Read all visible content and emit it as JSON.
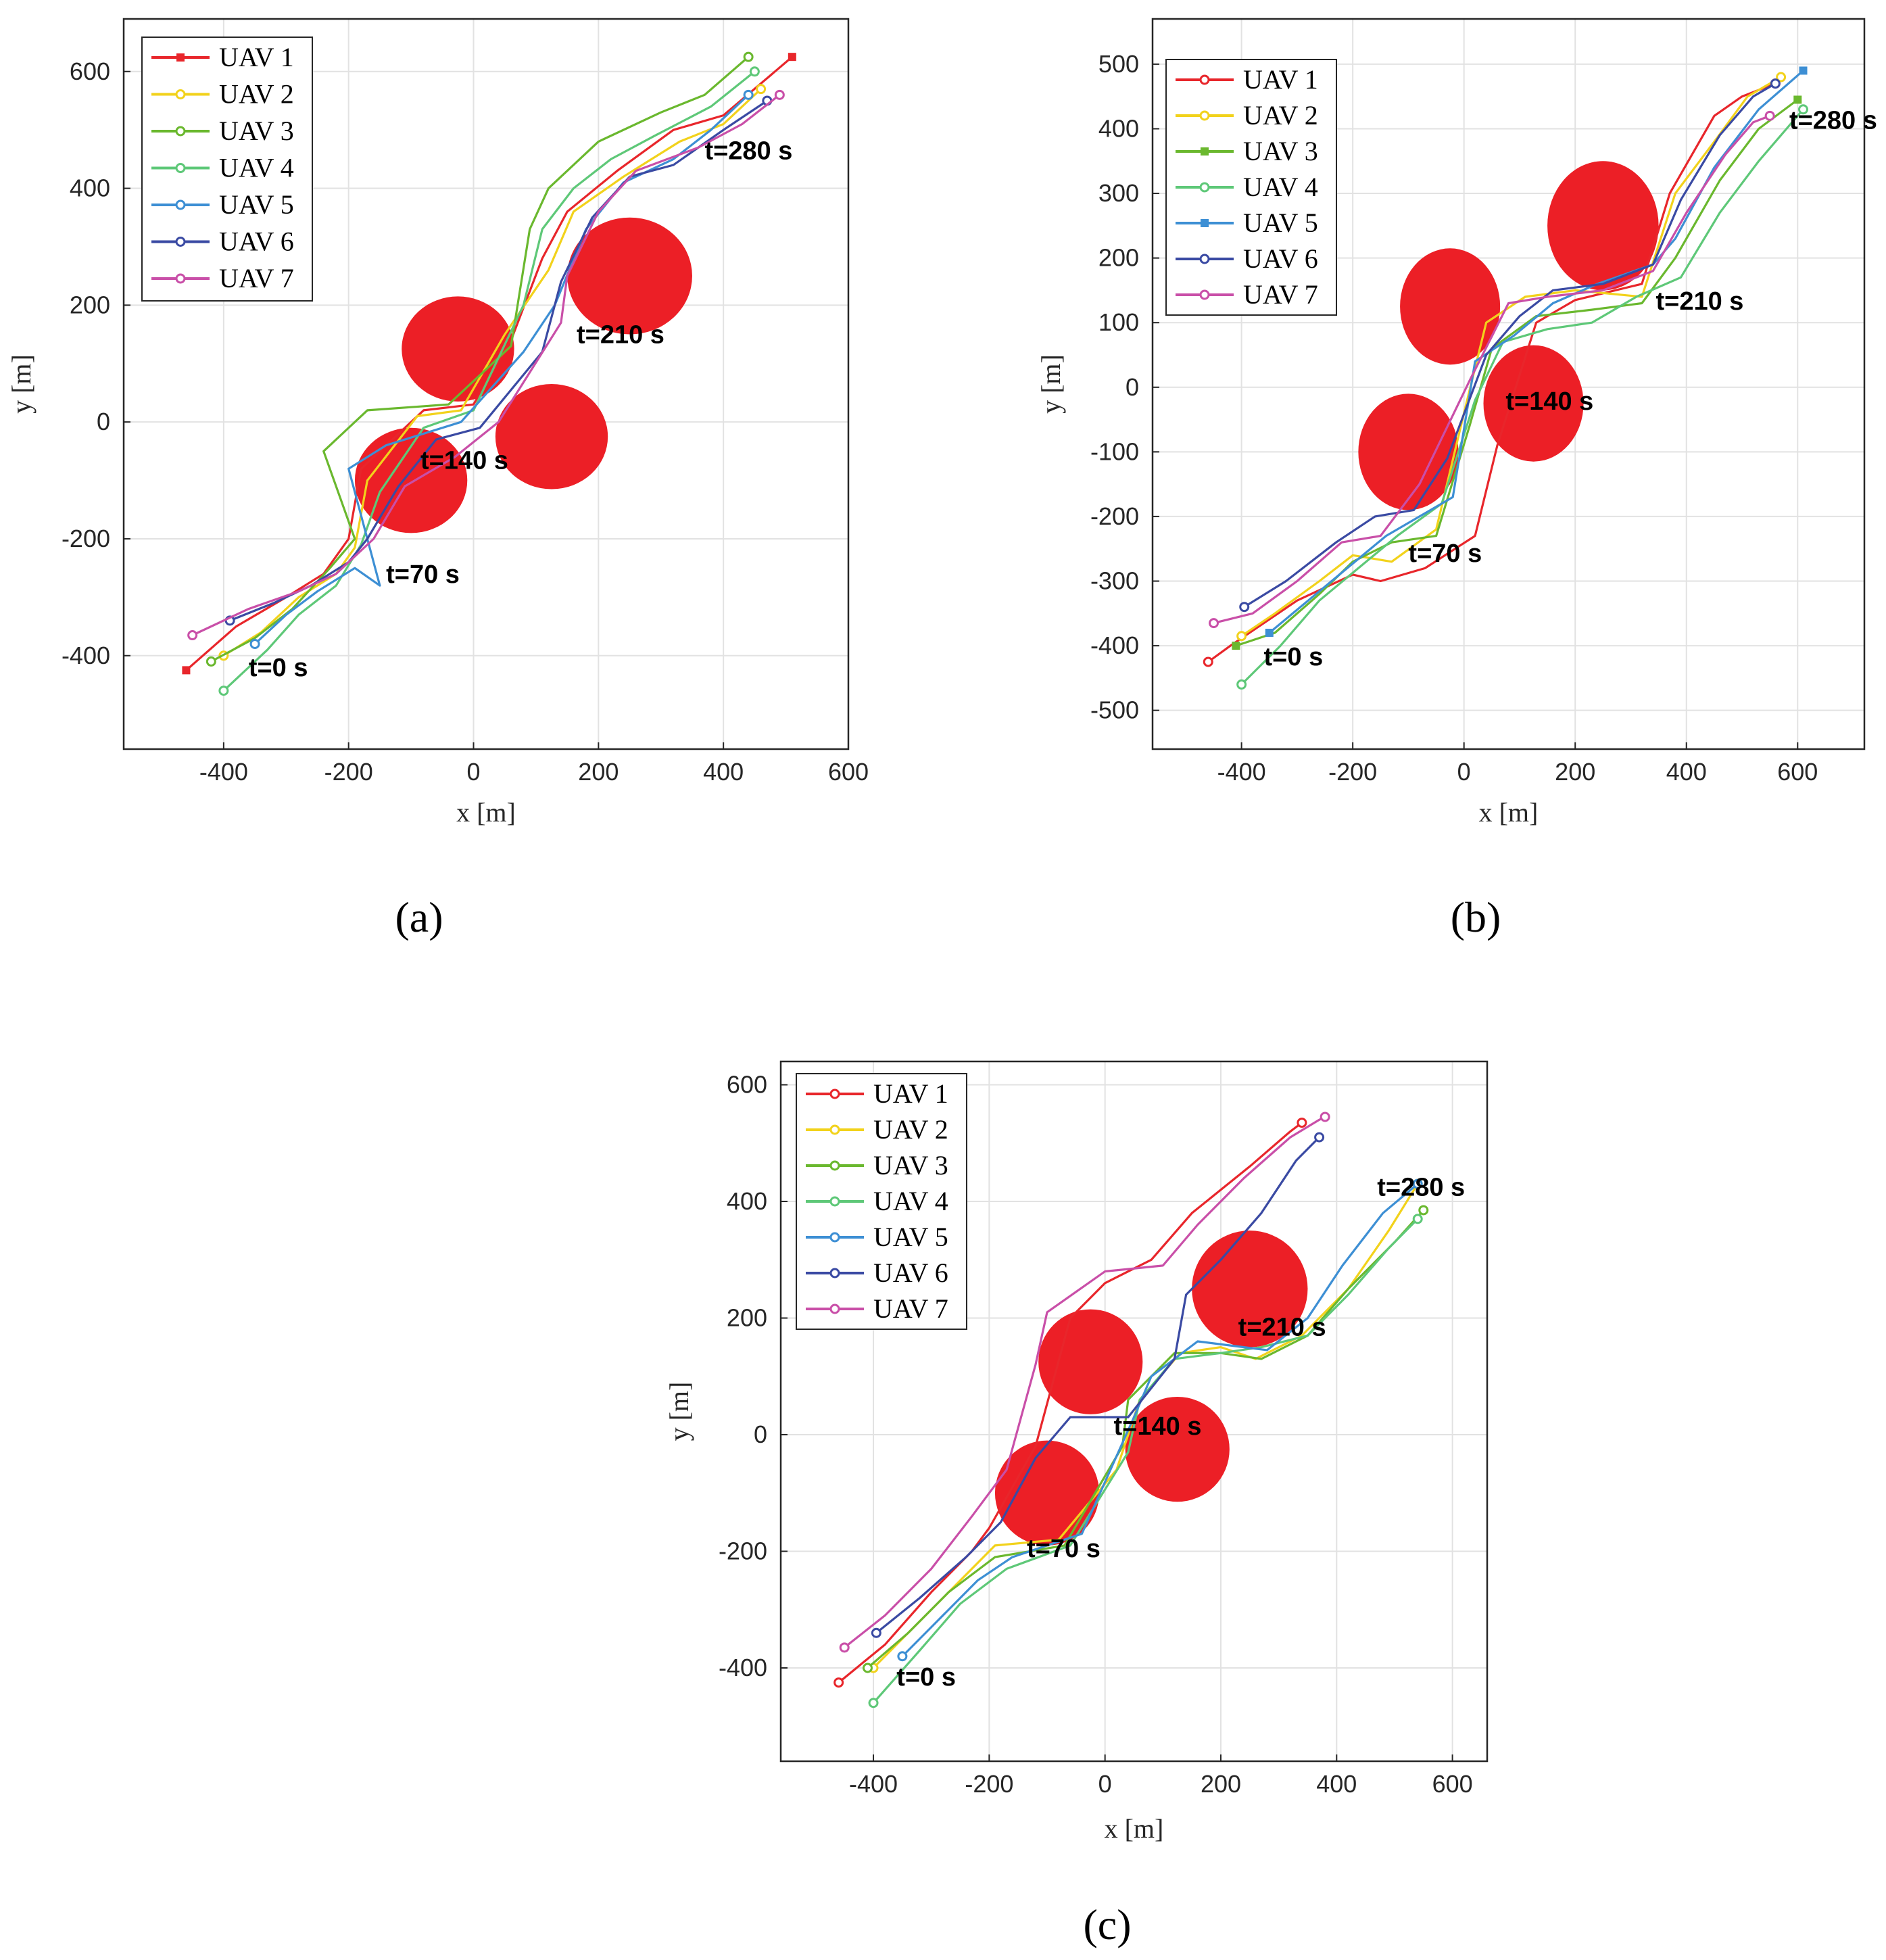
{
  "figure": {
    "series_names": [
      "UAV 1",
      "UAV 2",
      "UAV 3",
      "UAV 4",
      "UAV 5",
      "UAV 6",
      "UAV 7"
    ],
    "series_colors": [
      "#e8262b",
      "#f2d21b",
      "#6ab82e",
      "#5ec878",
      "#3d8fd4",
      "#3a4aa3",
      "#c94fa8"
    ]
  },
  "chart_data": [
    {
      "type": "line",
      "panel_label": "(a)",
      "xlabel": "x [m]",
      "ylabel": "y [m]",
      "xlim": [
        -560,
        600
      ],
      "ylim": [
        -560,
        690
      ],
      "xticks": [
        -400,
        -200,
        0,
        200,
        400,
        600
      ],
      "yticks": [
        -400,
        -200,
        0,
        200,
        400,
        600
      ],
      "xtick_labels": [
        "-400",
        "-200",
        "0",
        "200",
        "400",
        "600"
      ],
      "ytick_labels": [
        "-400",
        "-200",
        "0",
        "200",
        "400",
        "600"
      ],
      "grid": true,
      "legend_position": "top-left",
      "legend_markers": [
        "square",
        "circle",
        "circle",
        "circle",
        "circle",
        "circle",
        "circle"
      ],
      "obstacles": [
        {
          "cx": -100,
          "cy": -100,
          "r": 90
        },
        {
          "cx": -25,
          "cy": 125,
          "r": 90
        },
        {
          "cx": 125,
          "cy": -25,
          "r": 90
        },
        {
          "cx": 250,
          "cy": 250,
          "r": 100
        }
      ],
      "annotations": [
        {
          "text": "t=0 s",
          "x": -360,
          "y": -435
        },
        {
          "text": "t=70 s",
          "x": -140,
          "y": -275
        },
        {
          "text": "t=140 s",
          "x": -85,
          "y": -80
        },
        {
          "text": "t=210 s",
          "x": 165,
          "y": 135
        },
        {
          "text": "t=280 s",
          "x": 370,
          "y": 450
        }
      ],
      "series": [
        {
          "name": "UAV 1",
          "x": [
            -460,
            -380,
            -300,
            -240,
            -200,
            -180,
            -80,
            0,
            60,
            110,
            150,
            230,
            320,
            400,
            510
          ],
          "y": [
            -425,
            -350,
            -300,
            -260,
            -200,
            -80,
            20,
            30,
            140,
            280,
            360,
            430,
            500,
            525,
            625
          ]
        },
        {
          "name": "UAV 2",
          "x": [
            -400,
            -340,
            -280,
            -220,
            -190,
            -170,
            -90,
            -20,
            50,
            120,
            160,
            240,
            330,
            400,
            460
          ],
          "y": [
            -400,
            -360,
            -300,
            -260,
            -215,
            -100,
            10,
            20,
            150,
            260,
            360,
            420,
            480,
            510,
            570
          ]
        },
        {
          "name": "UAV 3",
          "x": [
            -420,
            -350,
            -290,
            -230,
            -190,
            -240,
            -170,
            -40,
            60,
            90,
            120,
            200,
            300,
            370,
            440
          ],
          "y": [
            -410,
            -370,
            -320,
            -250,
            -200,
            -50,
            20,
            30,
            130,
            330,
            400,
            480,
            530,
            560,
            625
          ]
        },
        {
          "name": "UAV 4",
          "x": [
            -400,
            -330,
            -280,
            -220,
            -180,
            -150,
            -80,
            0,
            80,
            110,
            160,
            220,
            290,
            380,
            450
          ],
          "y": [
            -460,
            -390,
            -330,
            -280,
            -210,
            -120,
            -10,
            20,
            200,
            330,
            400,
            450,
            490,
            540,
            600
          ]
        },
        {
          "name": "UAV 5",
          "x": [
            -350,
            -300,
            -250,
            -190,
            -150,
            -200,
            -140,
            -20,
            80,
            130,
            180,
            240,
            320,
            380,
            440
          ],
          "y": [
            -380,
            -330,
            -290,
            -250,
            -280,
            -80,
            -40,
            0,
            120,
            200,
            330,
            410,
            450,
            500,
            560
          ]
        },
        {
          "name": "UAV 6",
          "x": [
            -390,
            -320,
            -260,
            -200,
            -170,
            -120,
            -60,
            10,
            110,
            140,
            190,
            250,
            320,
            400,
            470
          ],
          "y": [
            -340,
            -310,
            -280,
            -240,
            -200,
            -110,
            -30,
            -10,
            120,
            240,
            350,
            420,
            440,
            500,
            550
          ]
        },
        {
          "name": "UAV 7",
          "x": [
            -450,
            -360,
            -280,
            -220,
            -160,
            -110,
            -30,
            40,
            140,
            150,
            200,
            260,
            360,
            430,
            490
          ],
          "y": [
            -365,
            -320,
            -290,
            -260,
            -200,
            -110,
            -60,
            0,
            170,
            250,
            360,
            430,
            470,
            510,
            560
          ]
        }
      ]
    },
    {
      "type": "line",
      "panel_label": "(b)",
      "xlabel": "x [m]",
      "ylabel": "y [m]",
      "xlim": [
        -560,
        720
      ],
      "ylim": [
        -560,
        570
      ],
      "xticks": [
        -400,
        -200,
        0,
        200,
        400,
        600
      ],
      "yticks": [
        -500,
        -400,
        -300,
        -200,
        -100,
        0,
        100,
        200,
        300,
        400,
        500
      ],
      "xtick_labels": [
        "-400",
        "-200",
        "0",
        "200",
        "400",
        "600"
      ],
      "ytick_labels": [
        "-500",
        "-400",
        "-300",
        "-200",
        "-100",
        "0",
        "100",
        "200",
        "300",
        "400",
        "500"
      ],
      "grid": true,
      "legend_position": "top-left",
      "legend_markers": [
        "circle",
        "circle",
        "square",
        "circle",
        "square",
        "circle",
        "circle"
      ],
      "obstacles": [
        {
          "cx": -100,
          "cy": -100,
          "r": 90
        },
        {
          "cx": -25,
          "cy": 125,
          "r": 90
        },
        {
          "cx": 125,
          "cy": -25,
          "r": 90
        },
        {
          "cx": 250,
          "cy": 250,
          "r": 100
        }
      ],
      "annotations": [
        {
          "text": "t=0 s",
          "x": -360,
          "y": -430
        },
        {
          "text": "t=70 s",
          "x": -100,
          "y": -270
        },
        {
          "text": "t=140 s",
          "x": 75,
          "y": -35
        },
        {
          "text": "t=210 s",
          "x": 345,
          "y": 120
        },
        {
          "text": "t=280 s",
          "x": 585,
          "y": 400
        }
      ],
      "series": [
        {
          "name": "UAV 1",
          "x": [
            -460,
            -420,
            -300,
            -200,
            -150,
            -70,
            20,
            60,
            130,
            200,
            320,
            370,
            450,
            500,
            560
          ],
          "y": [
            -425,
            -400,
            -330,
            -290,
            -300,
            -280,
            -230,
            -90,
            100,
            135,
            160,
            300,
            420,
            450,
            470
          ]
        },
        {
          "name": "UAV 2",
          "x": [
            -400,
            -340,
            -260,
            -200,
            -130,
            -50,
            0,
            40,
            110,
            200,
            320,
            380,
            450,
            510,
            570
          ],
          "y": [
            -385,
            -350,
            -300,
            -260,
            -270,
            -220,
            -40,
            100,
            140,
            150,
            140,
            300,
            380,
            450,
            480
          ]
        },
        {
          "name": "UAV 3",
          "x": [
            -410,
            -340,
            -260,
            -200,
            -130,
            -50,
            10,
            50,
            130,
            230,
            320,
            380,
            460,
            530,
            600
          ],
          "y": [
            -400,
            -380,
            -320,
            -270,
            -240,
            -230,
            -60,
            60,
            110,
            120,
            130,
            200,
            320,
            400,
            445
          ]
        },
        {
          "name": "UAV 4",
          "x": [
            -400,
            -330,
            -260,
            -190,
            -120,
            -40,
            20,
            70,
            150,
            230,
            310,
            390,
            460,
            530,
            610
          ],
          "y": [
            -460,
            -400,
            -330,
            -280,
            -230,
            -180,
            -20,
            70,
            90,
            100,
            140,
            170,
            270,
            350,
            430
          ]
        },
        {
          "name": "UAV 5",
          "x": [
            -350,
            -280,
            -210,
            -140,
            -80,
            -20,
            20,
            90,
            160,
            240,
            340,
            380,
            450,
            530,
            610
          ],
          "y": [
            -380,
            -330,
            -280,
            -230,
            -200,
            -170,
            40,
            80,
            130,
            160,
            190,
            230,
            340,
            430,
            490
          ]
        },
        {
          "name": "UAV 6",
          "x": [
            -395,
            -320,
            -230,
            -160,
            -90,
            -30,
            40,
            100,
            160,
            250,
            340,
            390,
            460,
            520,
            560
          ],
          "y": [
            -340,
            -300,
            -240,
            -200,
            -190,
            -110,
            50,
            110,
            150,
            160,
            190,
            290,
            390,
            450,
            470
          ]
        },
        {
          "name": "UAV 7",
          "x": [
            -450,
            -380,
            -300,
            -220,
            -150,
            -80,
            10,
            80,
            150,
            250,
            340,
            400,
            470,
            520,
            550
          ],
          "y": [
            -365,
            -350,
            -300,
            -240,
            -230,
            -150,
            10,
            130,
            140,
            150,
            180,
            270,
            360,
            410,
            420
          ]
        }
      ]
    },
    {
      "type": "line",
      "panel_label": "(c)",
      "xlabel": "x [m]",
      "ylabel": "y [m]",
      "xlim": [
        -560,
        660
      ],
      "ylim": [
        -560,
        640
      ],
      "xticks": [
        -400,
        -200,
        0,
        200,
        400,
        600
      ],
      "yticks": [
        -400,
        -200,
        0,
        200,
        400,
        600
      ],
      "xtick_labels": [
        "-400",
        "-200",
        "0",
        "200",
        "400",
        "600"
      ],
      "ytick_labels": [
        "-400",
        "-200",
        "0",
        "200",
        "400",
        "600"
      ],
      "grid": true,
      "legend_position": "top-left",
      "legend_markers": [
        "circle",
        "circle",
        "circle",
        "circle",
        "circle",
        "circle",
        "circle"
      ],
      "obstacles": [
        {
          "cx": -100,
          "cy": -100,
          "r": 90
        },
        {
          "cx": -25,
          "cy": 125,
          "r": 90
        },
        {
          "cx": 125,
          "cy": -25,
          "r": 90
        },
        {
          "cx": 250,
          "cy": 250,
          "r": 100
        }
      ],
      "annotations": [
        {
          "text": "t=0 s",
          "x": -360,
          "y": -430
        },
        {
          "text": "t=70 s",
          "x": -135,
          "y": -210
        },
        {
          "text": "t=140 s",
          "x": 15,
          "y": 0
        },
        {
          "text": "t=210 s",
          "x": 230,
          "y": 170
        },
        {
          "text": "t=280 s",
          "x": 470,
          "y": 410
        }
      ],
      "series": [
        {
          "name": "UAV 1",
          "x": [
            -460,
            -380,
            -300,
            -230,
            -200,
            -120,
            -60,
            0,
            80,
            150,
            200,
            250,
            320,
            340
          ],
          "y": [
            -425,
            -360,
            -270,
            -200,
            -160,
            -20,
            200,
            260,
            300,
            380,
            420,
            460,
            520,
            535
          ]
        },
        {
          "name": "UAV 2",
          "x": [
            -400,
            -330,
            -260,
            -190,
            -80,
            20,
            60,
            130,
            200,
            260,
            340,
            420,
            490,
            540
          ],
          "y": [
            -400,
            -330,
            -260,
            -190,
            -180,
            -60,
            60,
            140,
            150,
            130,
            170,
            250,
            350,
            430
          ]
        },
        {
          "name": "UAV 3",
          "x": [
            -410,
            -340,
            -270,
            -190,
            -70,
            30,
            40,
            120,
            200,
            270,
            350,
            420,
            500,
            550
          ],
          "y": [
            -400,
            -340,
            -270,
            -210,
            -190,
            -20,
            60,
            140,
            140,
            130,
            170,
            250,
            330,
            385
          ]
        },
        {
          "name": "UAV 4",
          "x": [
            -400,
            -320,
            -250,
            -170,
            -60,
            40,
            60,
            120,
            200,
            270,
            350,
            420,
            490,
            540
          ],
          "y": [
            -460,
            -370,
            -290,
            -230,
            -190,
            -30,
            60,
            130,
            140,
            150,
            170,
            240,
            320,
            370
          ]
        },
        {
          "name": "UAV 5",
          "x": [
            -350,
            -290,
            -220,
            -160,
            -40,
            50,
            80,
            160,
            240,
            280,
            350,
            410,
            480,
            540
          ],
          "y": [
            -380,
            -320,
            -250,
            -210,
            -170,
            30,
            100,
            160,
            150,
            145,
            200,
            290,
            380,
            430
          ]
        },
        {
          "name": "UAV 6",
          "x": [
            -395,
            -320,
            -240,
            -180,
            -120,
            -60,
            40,
            120,
            140,
            200,
            270,
            330,
            360,
            370
          ],
          "y": [
            -340,
            -280,
            -210,
            -150,
            -40,
            30,
            30,
            130,
            240,
            300,
            380,
            470,
            500,
            510
          ]
        },
        {
          "name": "UAV 7",
          "x": [
            -450,
            -380,
            -300,
            -230,
            -170,
            -120,
            -100,
            0,
            100,
            160,
            240,
            320,
            370,
            380
          ],
          "y": [
            -365,
            -310,
            -230,
            -140,
            -60,
            120,
            210,
            280,
            290,
            360,
            440,
            510,
            540,
            545
          ]
        }
      ]
    }
  ]
}
